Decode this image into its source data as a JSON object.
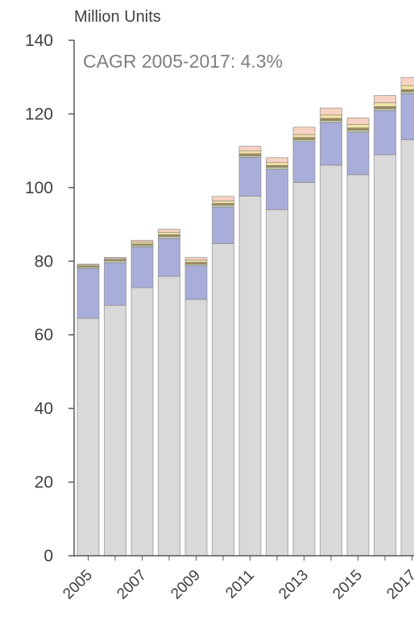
{
  "chart_data": {
    "type": "bar",
    "stacked": true,
    "y_unit_label": "Million Units",
    "annotation": "CAGR 2005-2017: 4.3%",
    "categories": [
      "2005",
      "2006",
      "2007",
      "2008",
      "2009",
      "2010",
      "2011",
      "2012",
      "2013",
      "2014",
      "2015",
      "2016",
      "2017"
    ],
    "x_tick_labels": [
      "2005",
      "",
      "2007",
      "",
      "2009",
      "",
      "2011",
      "",
      "2013",
      "",
      "2015",
      "",
      "2017"
    ],
    "ylim": [
      0,
      140
    ],
    "y_ticks": [
      0,
      20,
      40,
      60,
      80,
      100,
      120,
      140
    ],
    "grid": false,
    "series": [
      {
        "values": [
          64.5,
          68.0,
          72.8,
          75.9,
          69.6,
          84.8,
          97.7,
          94.0,
          101.4,
          106.1,
          103.5,
          108.9,
          113.0
        ],
        "color": "#d9d9d9"
      },
      {
        "values": [
          13.5,
          11.6,
          11.1,
          10.3,
          9.2,
          9.9,
          10.5,
          11.0,
          11.1,
          11.6,
          11.6,
          12.0,
          12.5
        ],
        "color": "#a9add9"
      },
      {
        "values": [
          0.4,
          0.5,
          0.4,
          0.5,
          0.4,
          0.5,
          0.4,
          0.5,
          0.5,
          0.5,
          0.5,
          0.5,
          0.5
        ],
        "color": "#c8d3a6"
      },
      {
        "values": [
          0.3,
          0.4,
          0.4,
          0.5,
          0.5,
          0.5,
          0.6,
          0.5,
          0.6,
          0.6,
          0.6,
          0.6,
          0.6
        ],
        "color": "#a08a5a"
      },
      {
        "values": [
          0.3,
          0.3,
          0.5,
          0.6,
          0.6,
          0.7,
          0.8,
          0.8,
          0.8,
          0.9,
          0.9,
          1.0,
          1.1
        ],
        "color": "#f2e3a2"
      },
      {
        "values": [
          0.2,
          0.2,
          0.5,
          0.9,
          0.7,
          1.2,
          1.2,
          1.3,
          2.0,
          1.9,
          1.8,
          2.0,
          2.2
        ],
        "color": "#f8d2c2"
      }
    ],
    "colors": {
      "axis": "#595959",
      "bar_outline": "#7f7f7f",
      "text": "#404040"
    }
  }
}
